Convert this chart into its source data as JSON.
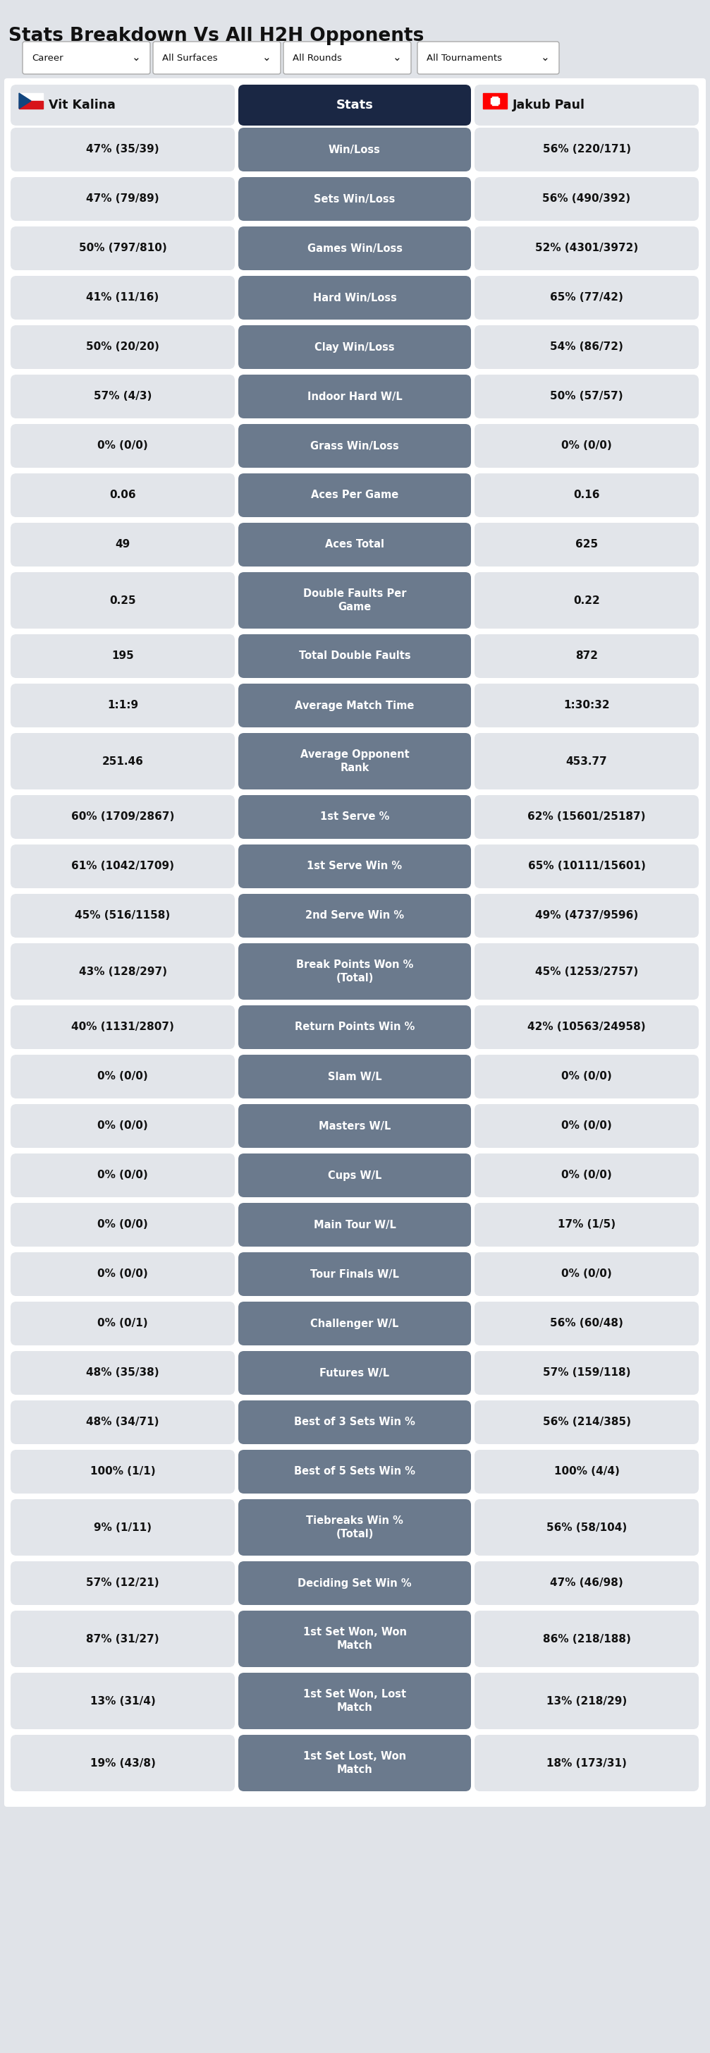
{
  "title": "Stats Breakdown Vs All H2H Opponents",
  "player1": "Vit Kalina",
  "player2": "Jakub Paul",
  "dropdowns": [
    "Career",
    "All Surfaces",
    "All Rounds",
    "All Tournaments"
  ],
  "stats_label": "Stats",
  "header_bg": "#1a2744",
  "row_bg_stat": "#6b7a8d",
  "row_bg_player": "#e2e5ea",
  "page_bg": "#e0e3e8",
  "white_panel_bg": "#ffffff",
  "rows": [
    {
      "stat": "Win/Loss",
      "p1": "47% (35/39)",
      "p2": "56% (220/171)",
      "multiline": false
    },
    {
      "stat": "Sets Win/Loss",
      "p1": "47% (79/89)",
      "p2": "56% (490/392)",
      "multiline": false
    },
    {
      "stat": "Games Win/Loss",
      "p1": "50% (797/810)",
      "p2": "52% (4301/3972)",
      "multiline": false
    },
    {
      "stat": "Hard Win/Loss",
      "p1": "41% (11/16)",
      "p2": "65% (77/42)",
      "multiline": false
    },
    {
      "stat": "Clay Win/Loss",
      "p1": "50% (20/20)",
      "p2": "54% (86/72)",
      "multiline": false
    },
    {
      "stat": "Indoor Hard W/L",
      "p1": "57% (4/3)",
      "p2": "50% (57/57)",
      "multiline": false
    },
    {
      "stat": "Grass Win/Loss",
      "p1": "0% (0/0)",
      "p2": "0% (0/0)",
      "multiline": false
    },
    {
      "stat": "Aces Per Game",
      "p1": "0.06",
      "p2": "0.16",
      "multiline": false
    },
    {
      "stat": "Aces Total",
      "p1": "49",
      "p2": "625",
      "multiline": false
    },
    {
      "stat": "Double Faults Per\nGame",
      "p1": "0.25",
      "p2": "0.22",
      "multiline": true
    },
    {
      "stat": "Total Double Faults",
      "p1": "195",
      "p2": "872",
      "multiline": false
    },
    {
      "stat": "Average Match Time",
      "p1": "1:1:9",
      "p2": "1:30:32",
      "multiline": false
    },
    {
      "stat": "Average Opponent\nRank",
      "p1": "251.46",
      "p2": "453.77",
      "multiline": true
    },
    {
      "stat": "1st Serve %",
      "p1": "60% (1709/2867)",
      "p2": "62% (15601/25187)",
      "multiline": false
    },
    {
      "stat": "1st Serve Win %",
      "p1": "61% (1042/1709)",
      "p2": "65% (10111/15601)",
      "multiline": false
    },
    {
      "stat": "2nd Serve Win %",
      "p1": "45% (516/1158)",
      "p2": "49% (4737/9596)",
      "multiline": false
    },
    {
      "stat": "Break Points Won %\n(Total)",
      "p1": "43% (128/297)",
      "p2": "45% (1253/2757)",
      "multiline": true
    },
    {
      "stat": "Return Points Win %",
      "p1": "40% (1131/2807)",
      "p2": "42% (10563/24958)",
      "multiline": false
    },
    {
      "stat": "Slam W/L",
      "p1": "0% (0/0)",
      "p2": "0% (0/0)",
      "multiline": false
    },
    {
      "stat": "Masters W/L",
      "p1": "0% (0/0)",
      "p2": "0% (0/0)",
      "multiline": false
    },
    {
      "stat": "Cups W/L",
      "p1": "0% (0/0)",
      "p2": "0% (0/0)",
      "multiline": false
    },
    {
      "stat": "Main Tour W/L",
      "p1": "0% (0/0)",
      "p2": "17% (1/5)",
      "multiline": false
    },
    {
      "stat": "Tour Finals W/L",
      "p1": "0% (0/0)",
      "p2": "0% (0/0)",
      "multiline": false
    },
    {
      "stat": "Challenger W/L",
      "p1": "0% (0/1)",
      "p2": "56% (60/48)",
      "multiline": false
    },
    {
      "stat": "Futures W/L",
      "p1": "48% (35/38)",
      "p2": "57% (159/118)",
      "multiline": false
    },
    {
      "stat": "Best of 3 Sets Win %",
      "p1": "48% (34/71)",
      "p2": "56% (214/385)",
      "multiline": false
    },
    {
      "stat": "Best of 5 Sets Win %",
      "p1": "100% (1/1)",
      "p2": "100% (4/4)",
      "multiline": false
    },
    {
      "stat": "Tiebreaks Win %\n(Total)",
      "p1": "9% (1/11)",
      "p2": "56% (58/104)",
      "multiline": true
    },
    {
      "stat": "Deciding Set Win %",
      "p1": "57% (12/21)",
      "p2": "47% (46/98)",
      "multiline": false
    },
    {
      "stat": "1st Set Won, Won\nMatch",
      "p1": "87% (31/27)",
      "p2": "86% (218/188)",
      "multiline": true
    },
    {
      "stat": "1st Set Won, Lost\nMatch",
      "p1": "13% (31/4)",
      "p2": "13% (218/29)",
      "multiline": true
    },
    {
      "stat": "1st Set Lost, Won\nMatch",
      "p1": "19% (43/8)",
      "p2": "18% (173/31)",
      "multiline": true
    }
  ]
}
